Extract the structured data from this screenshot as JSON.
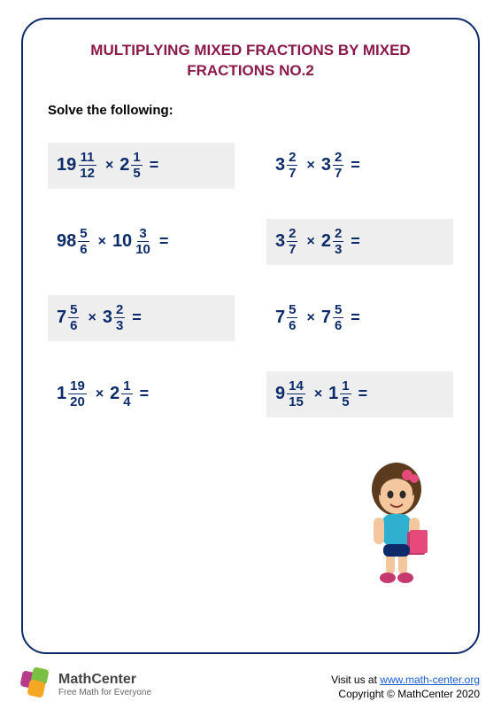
{
  "title_line1": "MULTIPLYING MIXED FRACTIONS BY MIXED",
  "title_line2": "FRACTIONS NO.2",
  "instruction": "Solve the following:",
  "colors": {
    "border": "#0d2b6b",
    "title": "#8b1a4a",
    "fraction": "#0d2b6b",
    "shaded_bg": "#eeeeee"
  },
  "problems": [
    {
      "shaded": true,
      "a": {
        "w": "19",
        "n": "11",
        "d": "12"
      },
      "b": {
        "w": "2",
        "n": "1",
        "d": "5"
      }
    },
    {
      "shaded": false,
      "a": {
        "w": "3",
        "n": "2",
        "d": "7"
      },
      "b": {
        "w": "3",
        "n": "2",
        "d": "7"
      }
    },
    {
      "shaded": false,
      "a": {
        "w": "98",
        "n": "5",
        "d": "6"
      },
      "b": {
        "w": "10",
        "n": "3",
        "d": "10"
      }
    },
    {
      "shaded": true,
      "a": {
        "w": "3",
        "n": "2",
        "d": "7"
      },
      "b": {
        "w": "2",
        "n": "2",
        "d": "3"
      }
    },
    {
      "shaded": true,
      "a": {
        "w": "7",
        "n": "5",
        "d": "6"
      },
      "b": {
        "w": "3",
        "n": "2",
        "d": "3"
      }
    },
    {
      "shaded": false,
      "a": {
        "w": "7",
        "n": "5",
        "d": "6"
      },
      "b": {
        "w": "7",
        "n": "5",
        "d": "6"
      }
    },
    {
      "shaded": false,
      "a": {
        "w": "1",
        "n": "19",
        "d": "20"
      },
      "b": {
        "w": "2",
        "n": "1",
        "d": "4"
      }
    },
    {
      "shaded": true,
      "a": {
        "w": "9",
        "n": "14",
        "d": "15"
      },
      "b": {
        "w": "1",
        "n": "1",
        "d": "5"
      }
    }
  ],
  "operator": "×",
  "equals": "=",
  "footer": {
    "brand": "MathCenter",
    "tagline": "Free Math for Everyone",
    "visit_label": "Visit us at ",
    "url": "www.math-center.org",
    "copyright": "Copyright © MathCenter 2020"
  }
}
